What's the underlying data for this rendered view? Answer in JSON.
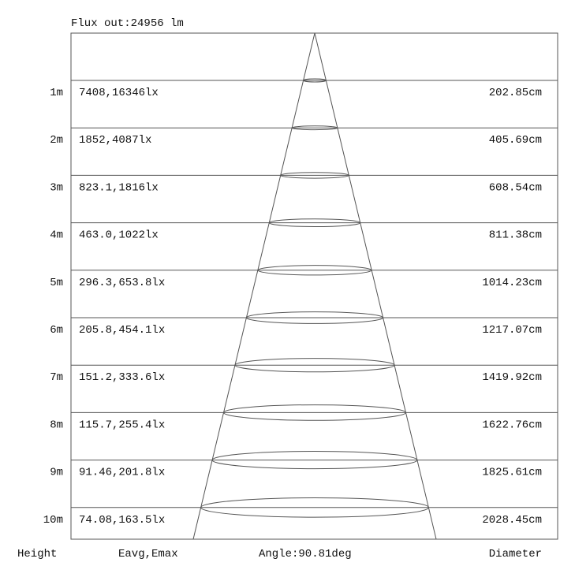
{
  "flux_label": "Flux out:24956 lm",
  "footer": {
    "height_label": "Height",
    "illuminance_label": "Eavg,Emax",
    "angle_label": "Angle:90.81deg",
    "diameter_label": "Diameter"
  },
  "rows": [
    {
      "height": "1m",
      "illuminance": "7408,16346lx",
      "diameter": "202.85cm"
    },
    {
      "height": "2m",
      "illuminance": "1852,4087lx",
      "diameter": "405.69cm"
    },
    {
      "height": "3m",
      "illuminance": "823.1,1816lx",
      "diameter": "608.54cm"
    },
    {
      "height": "4m",
      "illuminance": "463.0,1022lx",
      "diameter": "811.38cm"
    },
    {
      "height": "5m",
      "illuminance": "296.3,653.8lx",
      "diameter": "1014.23cm"
    },
    {
      "height": "6m",
      "illuminance": "205.8,454.1lx",
      "diameter": "1217.07cm"
    },
    {
      "height": "7m",
      "illuminance": "151.2,333.6lx",
      "diameter": "1419.92cm"
    },
    {
      "height": "8m",
      "illuminance": "115.7,255.4lx",
      "diameter": "1622.76cm"
    },
    {
      "height": "9m",
      "illuminance": "91.46,201.8lx",
      "diameter": "1825.61cm"
    },
    {
      "height": "10m",
      "illuminance": "74.08,163.5lx",
      "diameter": "2028.45cm"
    }
  ],
  "colors": {
    "line": "#555555",
    "text": "#111111"
  }
}
